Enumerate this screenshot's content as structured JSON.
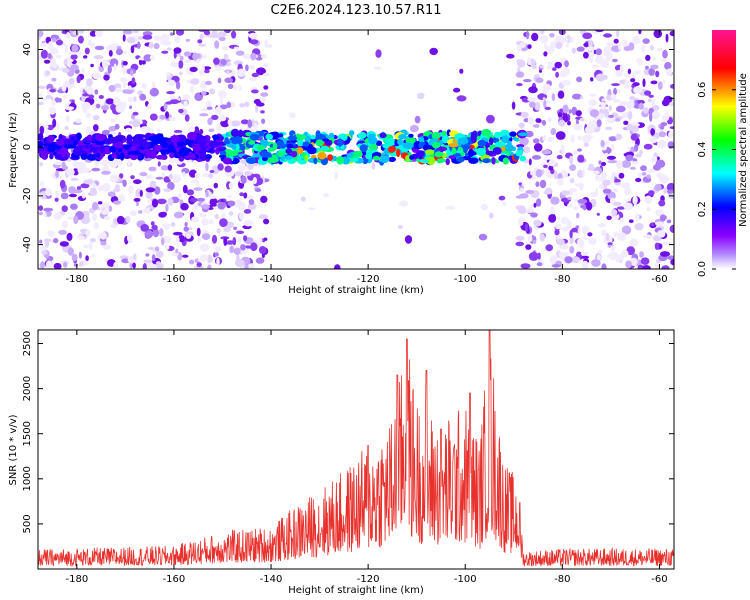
{
  "title": "C2E6.2024.123.10.57.R11",
  "colors": {
    "snr_line": "#e8312c",
    "frame": "#000000"
  },
  "chart_data": [
    {
      "type": "heatmap",
      "xlabel": "Height of straight line (km)",
      "ylabel": "Frequency (Hz)",
      "xlim": [
        -188,
        -57
      ],
      "ylim": [
        -50,
        48
      ],
      "x_ticks": [
        -180,
        -160,
        -140,
        -120,
        -100,
        -80,
        -60
      ],
      "y_ticks": [
        -40,
        -20,
        0,
        20,
        40
      ],
      "colorbar": {
        "label": "Normalized spectral amplitude",
        "range": [
          0.0,
          0.8
        ],
        "ticks": [
          "0.0",
          "0.2",
          "0.4",
          "0.6"
        ],
        "tick_values": [
          0.0,
          0.2,
          0.4,
          0.6
        ],
        "colormap": [
          "#ffffff",
          "#8b00ff",
          "#0000ff",
          "#00ffff",
          "#00ff00",
          "#ffff00",
          "#ff0000",
          "#ff1493"
        ]
      },
      "features": {
        "signal_band_center_hz": 0,
        "signal_band_x_range_km": [
          -188,
          -88
        ],
        "quiet_region_x_range_km": [
          -140,
          -89
        ],
        "noise_regions_km": [
          [
            -188,
            -141
          ],
          [
            -89,
            -57
          ]
        ]
      }
    },
    {
      "type": "line",
      "xlabel": "Height of straight line (km)",
      "ylabel": "SNR (10 * v/v)",
      "xlim": [
        -188,
        -57
      ],
      "ylim": [
        0,
        2650
      ],
      "x_ticks": [
        -180,
        -160,
        -140,
        -120,
        -100,
        -80,
        -60
      ],
      "y_ticks": [
        500,
        1000,
        1500,
        2000,
        2500
      ],
      "series": [
        {
          "color": "#e8312c",
          "envelope_x": [
            -188,
            -160,
            -150,
            -140,
            -135,
            -130,
            -125,
            -120,
            -115,
            -112,
            -110,
            -105,
            -100,
            -97,
            -95,
            -92,
            -89,
            -88,
            -80,
            -70,
            -57
          ],
          "envelope_y": [
            220,
            260,
            420,
            480,
            700,
            900,
            1100,
            1400,
            1700,
            2550,
            1900,
            1650,
            1850,
            1450,
            2650,
            1200,
            1000,
            200,
            230,
            230,
            230
          ],
          "peaks": [
            {
              "x": -112,
              "y": 2550
            },
            {
              "x": -114,
              "y": 2150
            },
            {
              "x": -108,
              "y": 2200
            },
            {
              "x": -95,
              "y": 2650
            },
            {
              "x": -99,
              "y": 1950
            },
            {
              "x": -120,
              "y": 1370
            },
            {
              "x": -105,
              "y": 1550
            }
          ]
        }
      ]
    }
  ]
}
